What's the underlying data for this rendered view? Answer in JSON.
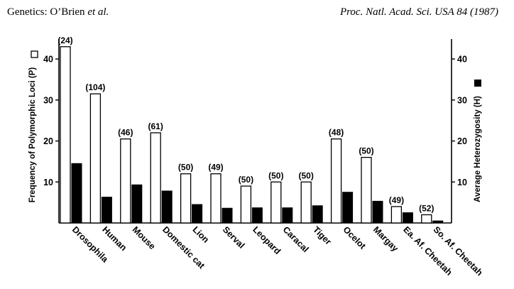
{
  "header": {
    "left_prefix": "Genetics: O’Brien ",
    "left_italic": "et al.",
    "right": "Proc. Natl. Acad. Sci. USA 84 (1987)"
  },
  "chart_data": {
    "type": "bar",
    "categories": [
      "Drosophila",
      "Human",
      "Mouse",
      "Domestic cat",
      "Lion",
      "Serval",
      "Leopard",
      "Caracal",
      "Tiger",
      "Ocelot",
      "Margay",
      "Ea. Af. Cheetah",
      "So. Af. Cheetah"
    ],
    "sample_sizes": [
      "(24)",
      "(104)",
      "(46)",
      "(61)",
      "(50)",
      "(49)",
      "(50)",
      "(50)",
      "(50)",
      "(48)",
      "(50)",
      "(49)",
      "(52)"
    ],
    "series": [
      {
        "name": "Frequency of Polymorphic Loci (P)",
        "axis": "left",
        "fill": "#ffffff",
        "values": [
          43,
          31.5,
          20.5,
          22,
          12,
          12,
          9,
          10,
          10,
          20.5,
          16,
          4,
          2
        ]
      },
      {
        "name": "Average Heterozygosity (H)",
        "axis": "right",
        "fill": "#000000",
        "values": [
          14.5,
          6.3,
          9.3,
          7.8,
          4.5,
          3.6,
          3.7,
          3.7,
          4.2,
          7.5,
          5.3,
          2.5,
          0.5
        ]
      }
    ],
    "ylabel_left": "Frequency of Polymorphic Loci (P)",
    "ylabel_right": "Average Heterozygosity (H)",
    "ylim": [
      0,
      44
    ],
    "yticks_left": [
      10,
      20,
      30,
      40
    ],
    "yticks_right": [
      10,
      20,
      30,
      40
    ],
    "legend_markers": {
      "left": "open square",
      "right": "filled square"
    }
  }
}
